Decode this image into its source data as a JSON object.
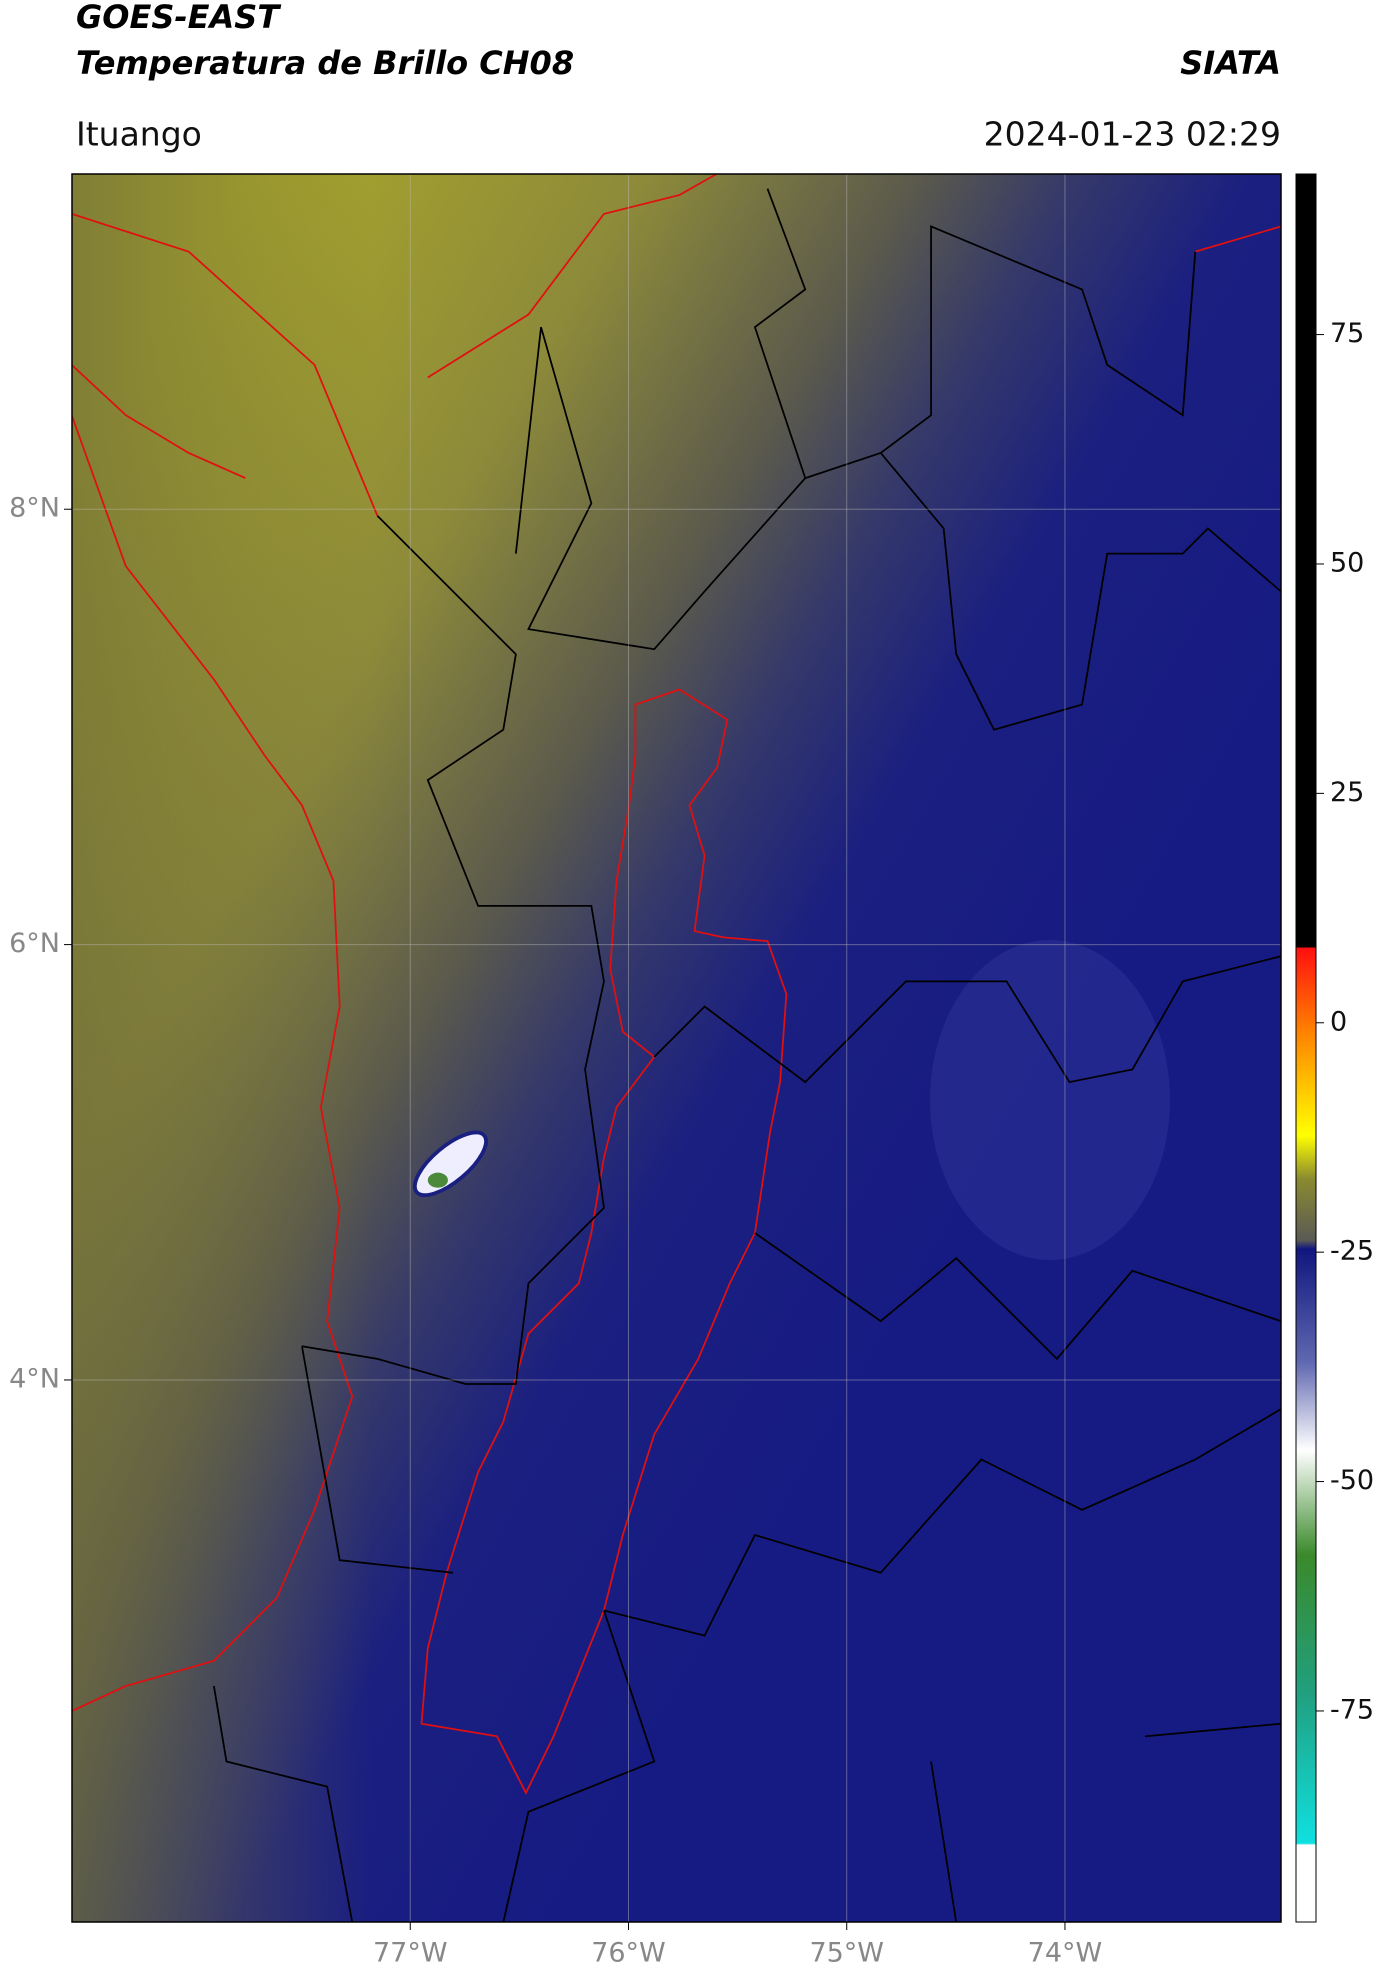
{
  "header": {
    "title": "GOES-EAST",
    "subtitle": "Temperatura de Brillo CH08",
    "source": "SIATA",
    "location": "Ituango",
    "timestamp": "2024-01-23 02:29"
  },
  "map": {
    "xlim": [
      -78.55,
      -73.01
    ],
    "ylim": [
      1.51,
      9.54
    ],
    "xticks": [
      {
        "value": -77,
        "label": "77°W"
      },
      {
        "value": -76,
        "label": "76°W"
      },
      {
        "value": -75,
        "label": "75°W"
      },
      {
        "value": -74,
        "label": "74°W"
      }
    ],
    "yticks": [
      {
        "value": 8,
        "label": "8°N"
      },
      {
        "value": 6,
        "label": "6°N"
      },
      {
        "value": 4,
        "label": "4°N"
      }
    ],
    "grid": true
  },
  "colorbar": {
    "lim": [
      -98,
      92.5
    ],
    "ticks": [
      75,
      50,
      25,
      0,
      -25,
      -50,
      -75
    ]
  }
}
